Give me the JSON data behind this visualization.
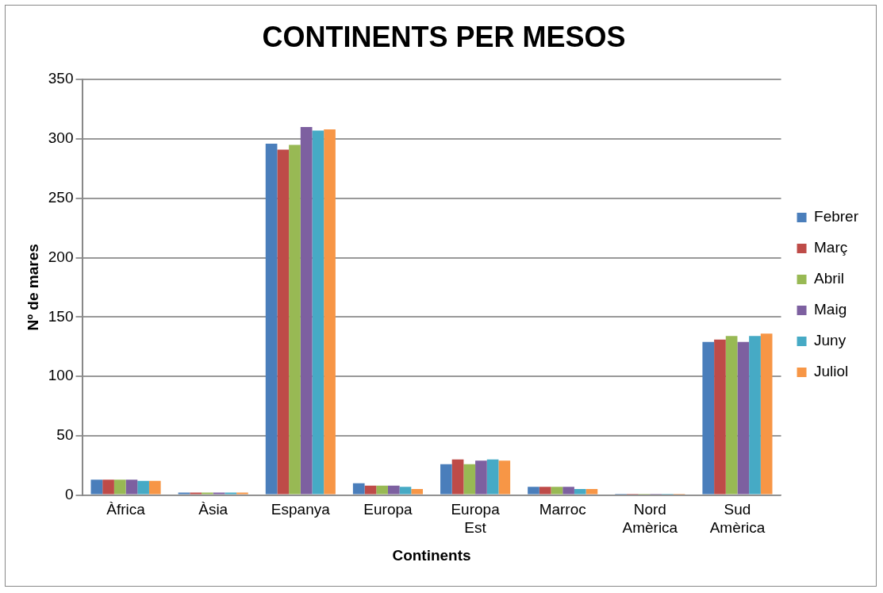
{
  "chart_data": {
    "type": "bar",
    "title": "CONTINENTS PER MESOS",
    "xlabel": "Continents",
    "ylabel": "Nº de mares",
    "categories": [
      [
        "Àfrica"
      ],
      [
        "Àsia"
      ],
      [
        "Espanya"
      ],
      [
        "Europa"
      ],
      [
        "Europa",
        "Est"
      ],
      [
        "Marroc"
      ],
      [
        "Nord",
        "Amèrica"
      ],
      [
        "Sud",
        "Amèrica"
      ]
    ],
    "series": [
      {
        "name": "Febrer",
        "color": "#4a7ebb",
        "values": [
          13,
          2,
          296,
          10,
          26,
          7,
          1,
          129
        ]
      },
      {
        "name": "Març",
        "color": "#be4b48",
        "values": [
          13,
          2,
          291,
          8,
          30,
          7,
          1,
          131
        ]
      },
      {
        "name": "Abril",
        "color": "#98b954",
        "values": [
          13,
          2,
          295,
          8,
          26,
          7,
          1,
          134
        ]
      },
      {
        "name": "Maig",
        "color": "#7d60a0",
        "values": [
          13,
          2,
          310,
          8,
          29,
          7,
          1,
          129
        ]
      },
      {
        "name": "Juny",
        "color": "#46aac5",
        "values": [
          12,
          2,
          307,
          7,
          30,
          5,
          1,
          134
        ]
      },
      {
        "name": "Juliol",
        "color": "#f79646",
        "values": [
          12,
          2,
          308,
          5,
          29,
          5,
          1,
          136
        ]
      }
    ],
    "ylim": [
      0,
      350
    ],
    "yticks": [
      0,
      50,
      100,
      150,
      200,
      250,
      300,
      350
    ],
    "grid": "y",
    "legend": "right"
  }
}
